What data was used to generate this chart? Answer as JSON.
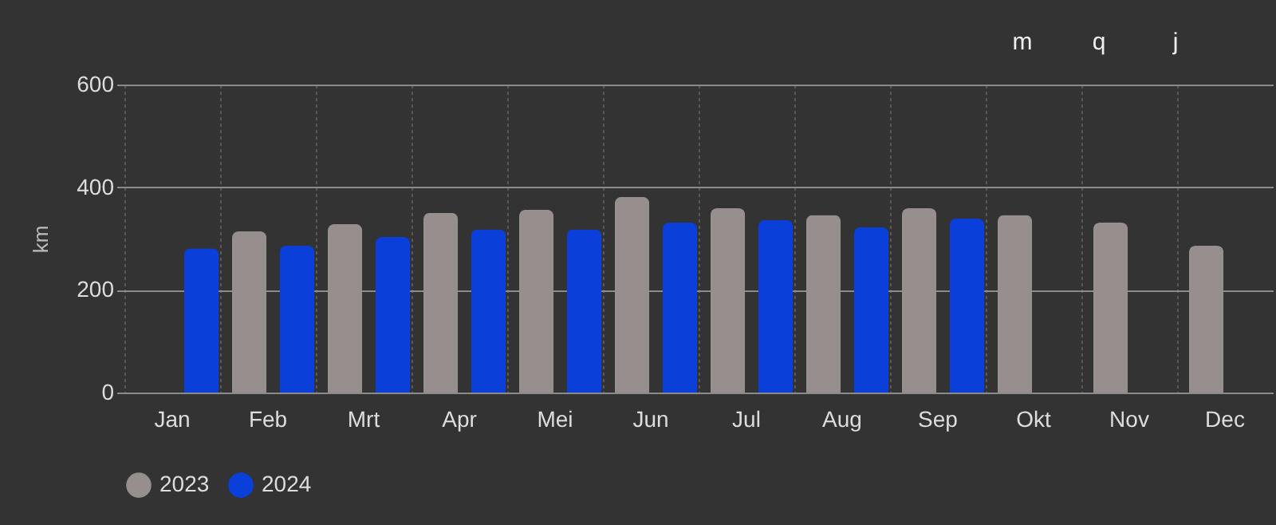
{
  "chart_data": {
    "type": "bar",
    "ylabel": "km",
    "categories": [
      "Jan",
      "Feb",
      "Mrt",
      "Apr",
      "Mei",
      "Jun",
      "Jul",
      "Aug",
      "Sep",
      "Okt",
      "Nov",
      "Dec"
    ],
    "series": [
      {
        "name": "2023",
        "color": "#968f8e",
        "values": [
          null,
          314,
          328,
          350,
          356,
          381,
          359,
          346,
          359,
          346,
          331,
          286
        ]
      },
      {
        "name": "2024",
        "color": "#0a3fd9",
        "values": [
          281,
          286,
          303,
          318,
          318,
          331,
          336,
          322,
          339,
          null,
          null,
          null
        ]
      }
    ],
    "ylim": [
      0,
      600
    ],
    "yticks": [
      0,
      200,
      400,
      600
    ],
    "grid": true,
    "legend": "bottom",
    "annotations": [
      "m",
      "q",
      "j"
    ]
  }
}
